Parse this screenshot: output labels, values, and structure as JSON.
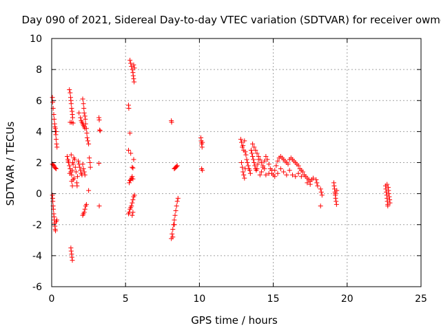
{
  "chart_data": {
    "type": "scatter",
    "title": "Day 090 of 2021, Sidereal Day-to-day VTEC variation (SDTVAR) for receiver owmg",
    "xlabel": "GPS time / hours",
    "ylabel": "SDTVAR / TECUs",
    "xlim": [
      0,
      25
    ],
    "ylim": [
      -6,
      10
    ],
    "x_ticks": [
      0,
      5,
      10,
      15,
      20,
      25
    ],
    "y_ticks": [
      -6,
      -4,
      -2,
      0,
      2,
      4,
      6,
      8,
      10
    ],
    "x_tick_labels": [
      "0",
      "5",
      "10",
      "15",
      "20",
      "25"
    ],
    "y_tick_labels": [
      "-6",
      "-4",
      "-2",
      "0",
      "2",
      "4",
      "6",
      "8",
      "10"
    ],
    "grid": true,
    "marker": "+",
    "color": "#ff0000",
    "series": [
      {
        "name": "SDTVAR",
        "points": [
          [
            0.05,
            6.2
          ],
          [
            0.07,
            5.9
          ],
          [
            0.1,
            5.5
          ],
          [
            0.14,
            5.1
          ],
          [
            0.17,
            4.8
          ],
          [
            0.2,
            4.5
          ],
          [
            0.22,
            4.3
          ],
          [
            0.25,
            4.0
          ],
          [
            0.28,
            3.8
          ],
          [
            0.3,
            3.5
          ],
          [
            0.33,
            3.2
          ],
          [
            0.36,
            3.0
          ],
          [
            0.25,
            4.2
          ],
          [
            0.3,
            4.0
          ],
          [
            0.05,
            1.9
          ],
          [
            0.1,
            1.85
          ],
          [
            0.15,
            1.8
          ],
          [
            0.2,
            1.7
          ],
          [
            0.25,
            1.65
          ],
          [
            0.3,
            1.6
          ],
          [
            0.05,
            -0.1
          ],
          [
            0.07,
            -0.3
          ],
          [
            0.08,
            -0.5
          ],
          [
            0.1,
            -0.8
          ],
          [
            0.12,
            -1.0
          ],
          [
            0.14,
            -1.3
          ],
          [
            0.16,
            -1.5
          ],
          [
            0.18,
            -1.7
          ],
          [
            0.2,
            -1.9
          ],
          [
            0.22,
            -2.1
          ],
          [
            0.24,
            -2.3
          ],
          [
            0.26,
            -2.4
          ],
          [
            0.3,
            -1.8
          ],
          [
            0.35,
            -1.7
          ],
          [
            1.05,
            2.4
          ],
          [
            1.1,
            2.2
          ],
          [
            1.15,
            2.0
          ],
          [
            1.2,
            1.8
          ],
          [
            1.25,
            1.6
          ],
          [
            1.3,
            1.4
          ],
          [
            1.35,
            1.2
          ],
          [
            1.4,
            1.5
          ],
          [
            1.45,
            1.9
          ],
          [
            1.5,
            2.3
          ],
          [
            1.55,
            2.2
          ],
          [
            1.6,
            1.7
          ],
          [
            1.65,
            1.4
          ],
          [
            1.12,
            2.1
          ],
          [
            1.22,
            1.3
          ],
          [
            1.32,
            2.5
          ],
          [
            1.42,
            2.0
          ],
          [
            1.52,
            1.0
          ],
          [
            1.35,
            0.8
          ],
          [
            1.4,
            0.5
          ],
          [
            1.45,
            0.9
          ],
          [
            1.2,
            6.7
          ],
          [
            1.25,
            6.5
          ],
          [
            1.28,
            6.2
          ],
          [
            1.3,
            6.0
          ],
          [
            1.32,
            5.8
          ],
          [
            1.35,
            5.5
          ],
          [
            1.38,
            5.3
          ],
          [
            1.4,
            5.1
          ],
          [
            1.42,
            4.9
          ],
          [
            1.25,
            4.6
          ],
          [
            1.35,
            4.6
          ],
          [
            1.45,
            4.55
          ],
          [
            1.3,
            -3.5
          ],
          [
            1.32,
            -3.7
          ],
          [
            1.35,
            -3.9
          ],
          [
            1.37,
            -4.1
          ],
          [
            1.4,
            -4.3
          ],
          [
            1.8,
            2.1
          ],
          [
            1.85,
            1.9
          ],
          [
            1.9,
            1.7
          ],
          [
            1.95,
            1.5
          ],
          [
            2.0,
            1.3
          ],
          [
            2.05,
            1.2
          ],
          [
            2.1,
            1.9
          ],
          [
            2.15,
            1.6
          ],
          [
            2.2,
            1.4
          ],
          [
            2.25,
            1.2
          ],
          [
            1.75,
            1.1
          ],
          [
            1.7,
            0.7
          ],
          [
            1.72,
            0.5
          ],
          [
            1.85,
            5.2
          ],
          [
            1.95,
            4.9
          ],
          [
            2.0,
            4.7
          ],
          [
            2.05,
            4.6
          ],
          [
            2.1,
            4.5
          ],
          [
            2.15,
            4.4
          ],
          [
            2.2,
            4.3
          ],
          [
            2.25,
            4.2
          ],
          [
            2.1,
            6.1
          ],
          [
            2.15,
            5.8
          ],
          [
            2.18,
            5.5
          ],
          [
            2.2,
            5.2
          ],
          [
            2.25,
            5.0
          ],
          [
            2.28,
            4.8
          ],
          [
            2.3,
            4.5
          ],
          [
            2.35,
            4.2
          ],
          [
            2.38,
            3.9
          ],
          [
            2.4,
            3.6
          ],
          [
            2.45,
            3.4
          ],
          [
            2.5,
            3.2
          ],
          [
            2.1,
            -1.4
          ],
          [
            2.15,
            -1.3
          ],
          [
            2.2,
            -1.2
          ],
          [
            2.25,
            -1.0
          ],
          [
            2.3,
            -0.8
          ],
          [
            2.35,
            -0.7
          ],
          [
            2.55,
            2.3
          ],
          [
            2.6,
            2.0
          ],
          [
            2.62,
            1.7
          ],
          [
            2.5,
            0.2
          ],
          [
            3.2,
            4.9
          ],
          [
            3.22,
            4.75
          ],
          [
            3.25,
            4.1
          ],
          [
            3.28,
            4.05
          ],
          [
            3.2,
            1.95
          ],
          [
            3.22,
            -0.8
          ],
          [
            5.2,
            5.7
          ],
          [
            5.22,
            5.5
          ],
          [
            5.3,
            3.9
          ],
          [
            5.3,
            8.6
          ],
          [
            5.35,
            8.4
          ],
          [
            5.4,
            8.2
          ],
          [
            5.45,
            8.0
          ],
          [
            5.5,
            7.8
          ],
          [
            5.52,
            7.6
          ],
          [
            5.55,
            7.4
          ],
          [
            5.58,
            7.2
          ],
          [
            5.55,
            8.3
          ],
          [
            5.6,
            8.1
          ],
          [
            5.2,
            2.8
          ],
          [
            5.35,
            2.6
          ],
          [
            5.45,
            1.7
          ],
          [
            5.5,
            1.65
          ],
          [
            5.55,
            2.2
          ],
          [
            5.25,
            0.7
          ],
          [
            5.3,
            0.85
          ],
          [
            5.35,
            0.9
          ],
          [
            5.4,
            1.0
          ],
          [
            5.45,
            1.1
          ],
          [
            5.5,
            0.95
          ],
          [
            5.2,
            -1.3
          ],
          [
            5.25,
            -1.2
          ],
          [
            5.3,
            -1.0
          ],
          [
            5.35,
            -0.9
          ],
          [
            5.4,
            -0.8
          ],
          [
            5.45,
            -0.6
          ],
          [
            5.5,
            -0.4
          ],
          [
            5.55,
            -0.2
          ],
          [
            5.6,
            -0.1
          ],
          [
            5.45,
            -1.4
          ],
          [
            5.5,
            -1.2
          ],
          [
            8.1,
            4.7
          ],
          [
            8.12,
            4.6
          ],
          [
            8.1,
            -2.9
          ],
          [
            8.15,
            -2.6
          ],
          [
            8.2,
            -2.3
          ],
          [
            8.25,
            -2.0
          ],
          [
            8.3,
            -1.7
          ],
          [
            8.35,
            -1.4
          ],
          [
            8.4,
            -1.1
          ],
          [
            8.45,
            -0.8
          ],
          [
            8.5,
            -0.5
          ],
          [
            8.55,
            -0.3
          ],
          [
            8.2,
            -2.8
          ],
          [
            8.3,
            -2.0
          ],
          [
            8.3,
            1.6
          ],
          [
            8.35,
            1.65
          ],
          [
            8.4,
            1.7
          ],
          [
            8.45,
            1.75
          ],
          [
            8.5,
            1.8
          ],
          [
            10.1,
            3.6
          ],
          [
            10.12,
            3.4
          ],
          [
            10.15,
            3.2
          ],
          [
            10.18,
            3.0
          ],
          [
            10.2,
            3.3
          ],
          [
            10.15,
            1.6
          ],
          [
            10.2,
            1.5
          ],
          [
            12.8,
            3.5
          ],
          [
            12.85,
            3.3
          ],
          [
            12.9,
            3.0
          ],
          [
            12.95,
            3.1
          ],
          [
            13.0,
            2.8
          ],
          [
            13.05,
            3.4
          ],
          [
            13.1,
            2.7
          ],
          [
            13.15,
            2.5
          ],
          [
            13.2,
            2.2
          ],
          [
            13.25,
            2.0
          ],
          [
            13.3,
            1.8
          ],
          [
            13.35,
            1.6
          ],
          [
            13.4,
            1.5
          ],
          [
            13.45,
            1.3
          ],
          [
            12.85,
            2.0
          ],
          [
            12.9,
            1.7
          ],
          [
            12.95,
            1.4
          ],
          [
            13.0,
            1.2
          ],
          [
            13.05,
            1.0
          ],
          [
            13.1,
            1.6
          ],
          [
            13.5,
            2.8
          ],
          [
            13.55,
            2.6
          ],
          [
            13.6,
            2.4
          ],
          [
            13.65,
            2.2
          ],
          [
            13.7,
            2.0
          ],
          [
            13.75,
            1.8
          ],
          [
            13.8,
            1.6
          ],
          [
            13.85,
            1.5
          ],
          [
            13.9,
            1.6
          ],
          [
            13.95,
            1.9
          ],
          [
            14.0,
            2.2
          ],
          [
            13.6,
            3.2
          ],
          [
            13.7,
            3.0
          ],
          [
            13.8,
            2.8
          ],
          [
            13.9,
            2.6
          ],
          [
            14.0,
            2.4
          ],
          [
            14.1,
            2.2
          ],
          [
            14.2,
            2.0
          ],
          [
            14.3,
            1.8
          ],
          [
            14.4,
            1.6
          ],
          [
            14.1,
            1.2
          ],
          [
            14.2,
            1.4
          ],
          [
            14.3,
            1.7
          ],
          [
            14.4,
            2.1
          ],
          [
            14.5,
            2.4
          ],
          [
            14.6,
            2.2
          ],
          [
            14.7,
            1.9
          ],
          [
            14.8,
            1.6
          ],
          [
            14.9,
            1.3
          ],
          [
            15.0,
            1.2
          ],
          [
            15.1,
            1.5
          ],
          [
            15.2,
            1.8
          ],
          [
            15.3,
            2.1
          ],
          [
            15.4,
            2.3
          ],
          [
            15.5,
            2.4
          ],
          [
            15.6,
            2.3
          ],
          [
            15.7,
            2.2
          ],
          [
            15.8,
            2.1
          ],
          [
            15.9,
            2.0
          ],
          [
            16.0,
            1.9
          ],
          [
            16.1,
            2.2
          ],
          [
            16.2,
            2.3
          ],
          [
            16.3,
            2.2
          ],
          [
            16.4,
            2.1
          ],
          [
            16.5,
            2.0
          ],
          [
            16.6,
            1.9
          ],
          [
            16.7,
            1.8
          ],
          [
            16.8,
            1.6
          ],
          [
            16.9,
            1.5
          ],
          [
            17.0,
            1.4
          ],
          [
            14.5,
            1.2
          ],
          [
            14.7,
            1.3
          ],
          [
            14.9,
            1.5
          ],
          [
            15.1,
            1.1
          ],
          [
            15.3,
            1.3
          ],
          [
            15.5,
            1.6
          ],
          [
            15.7,
            1.4
          ],
          [
            15.9,
            1.2
          ],
          [
            16.1,
            1.5
          ],
          [
            16.3,
            1.2
          ],
          [
            16.5,
            1.1
          ],
          [
            16.7,
            1.3
          ],
          [
            16.9,
            1.1
          ],
          [
            17.1,
            1.2
          ],
          [
            17.2,
            1.1
          ],
          [
            17.3,
            1.0
          ],
          [
            17.4,
            0.9
          ],
          [
            17.5,
            0.8
          ],
          [
            17.6,
            0.9
          ],
          [
            17.7,
            1.0
          ],
          [
            17.3,
            0.7
          ],
          [
            17.5,
            0.6
          ],
          [
            17.9,
            0.9
          ],
          [
            17.95,
            0.7
          ],
          [
            18.0,
            0.5
          ],
          [
            18.2,
            0.3
          ],
          [
            18.25,
            0.1
          ],
          [
            18.3,
            -0.1
          ],
          [
            18.2,
            -0.8
          ],
          [
            19.1,
            0.7
          ],
          [
            19.12,
            0.5
          ],
          [
            19.15,
            0.3
          ],
          [
            19.18,
            0.1
          ],
          [
            19.2,
            -0.1
          ],
          [
            19.22,
            -0.3
          ],
          [
            19.25,
            -0.5
          ],
          [
            19.28,
            -0.7
          ],
          [
            19.3,
            0.2
          ],
          [
            19.2,
            0.0
          ],
          [
            22.6,
            0.5
          ],
          [
            22.62,
            0.3
          ],
          [
            22.65,
            0.1
          ],
          [
            22.68,
            -0.1
          ],
          [
            22.7,
            -0.3
          ],
          [
            22.72,
            -0.5
          ],
          [
            22.75,
            -0.7
          ],
          [
            22.78,
            0.4
          ],
          [
            22.8,
            0.2
          ],
          [
            22.82,
            0.0
          ],
          [
            22.85,
            -0.2
          ],
          [
            22.88,
            -0.4
          ],
          [
            22.9,
            -0.6
          ],
          [
            22.7,
            0.6
          ],
          [
            22.75,
            -0.8
          ]
        ]
      }
    ]
  }
}
